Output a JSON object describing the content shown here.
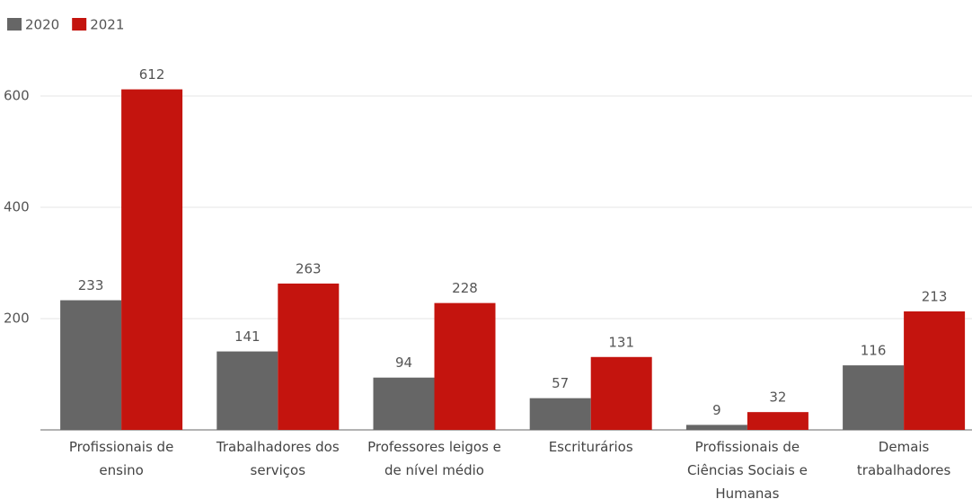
{
  "chart_data": {
    "type": "bar",
    "categories": [
      "Profissionais de ensino",
      "Trabalhadores dos serviços",
      "Professores leigos e de nível médio",
      "Escriturários",
      "Profissionais de Ciências Sociais e Humanas",
      "Demais trabalhadores"
    ],
    "series": [
      {
        "name": "2020",
        "color": "#666666",
        "values": [
          233,
          141,
          94,
          57,
          9,
          116
        ]
      },
      {
        "name": "2021",
        "color": "#c4140e",
        "values": [
          612,
          263,
          228,
          131,
          32,
          213
        ]
      }
    ],
    "ylim": [
      0,
      700
    ],
    "yticks": [
      200,
      400,
      600
    ],
    "grid": true,
    "legend": "top-left"
  }
}
